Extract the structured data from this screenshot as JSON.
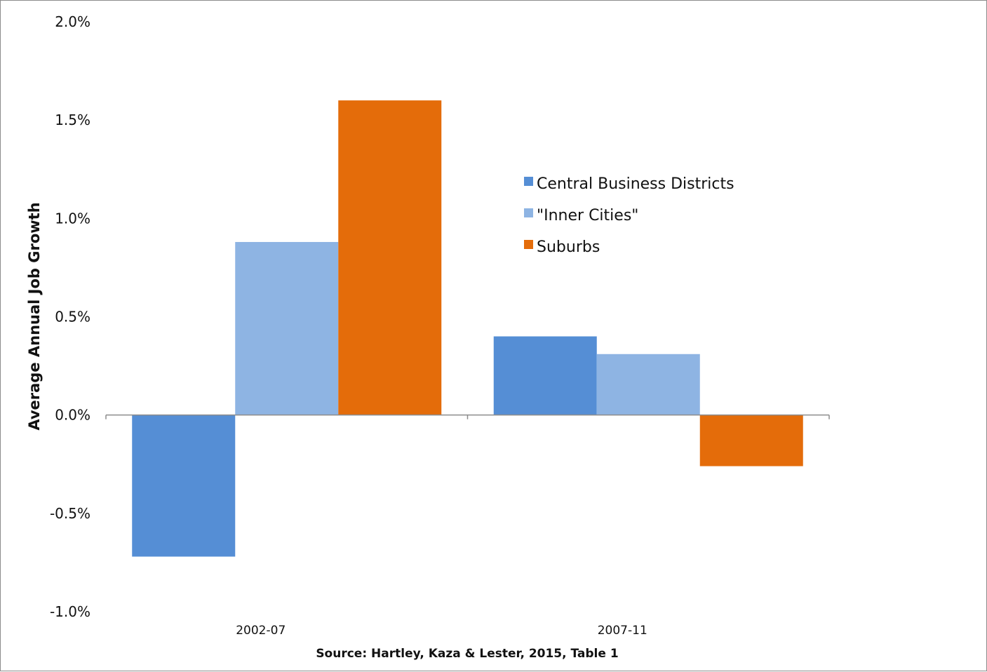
{
  "chart_data": {
    "type": "bar",
    "categories": [
      "2002-07",
      "2007-11"
    ],
    "series": [
      {
        "name": "Central Business Districts",
        "values": [
          -0.72,
          0.4
        ],
        "color": "#558ed5"
      },
      {
        "name": "\"Inner Cities\"",
        "values": [
          0.88,
          0.31
        ],
        "color": "#8eb4e3"
      },
      {
        "name": "Suburbs",
        "values": [
          1.6,
          -0.26
        ],
        "color": "#e46c0a"
      }
    ],
    "ylabel": "Average Annual Job Growth",
    "xlabel": "",
    "ylim": [
      -1.0,
      2.0
    ],
    "yticks": [
      {
        "value": 2.0,
        "label": "2.0%"
      },
      {
        "value": 1.5,
        "label": "1.5%"
      },
      {
        "value": 1.0,
        "label": "1.0%"
      },
      {
        "value": 0.5,
        "label": "0.5%"
      },
      {
        "value": 0.0,
        "label": "0.0%"
      },
      {
        "value": -0.5,
        "label": "-0.5%"
      },
      {
        "value": -1.0,
        "label": "-1.0%"
      }
    ],
    "grid": false,
    "legend_position": "right",
    "source": "Source:  Hartley, Kaza & Lester, 2015, Table 1"
  }
}
